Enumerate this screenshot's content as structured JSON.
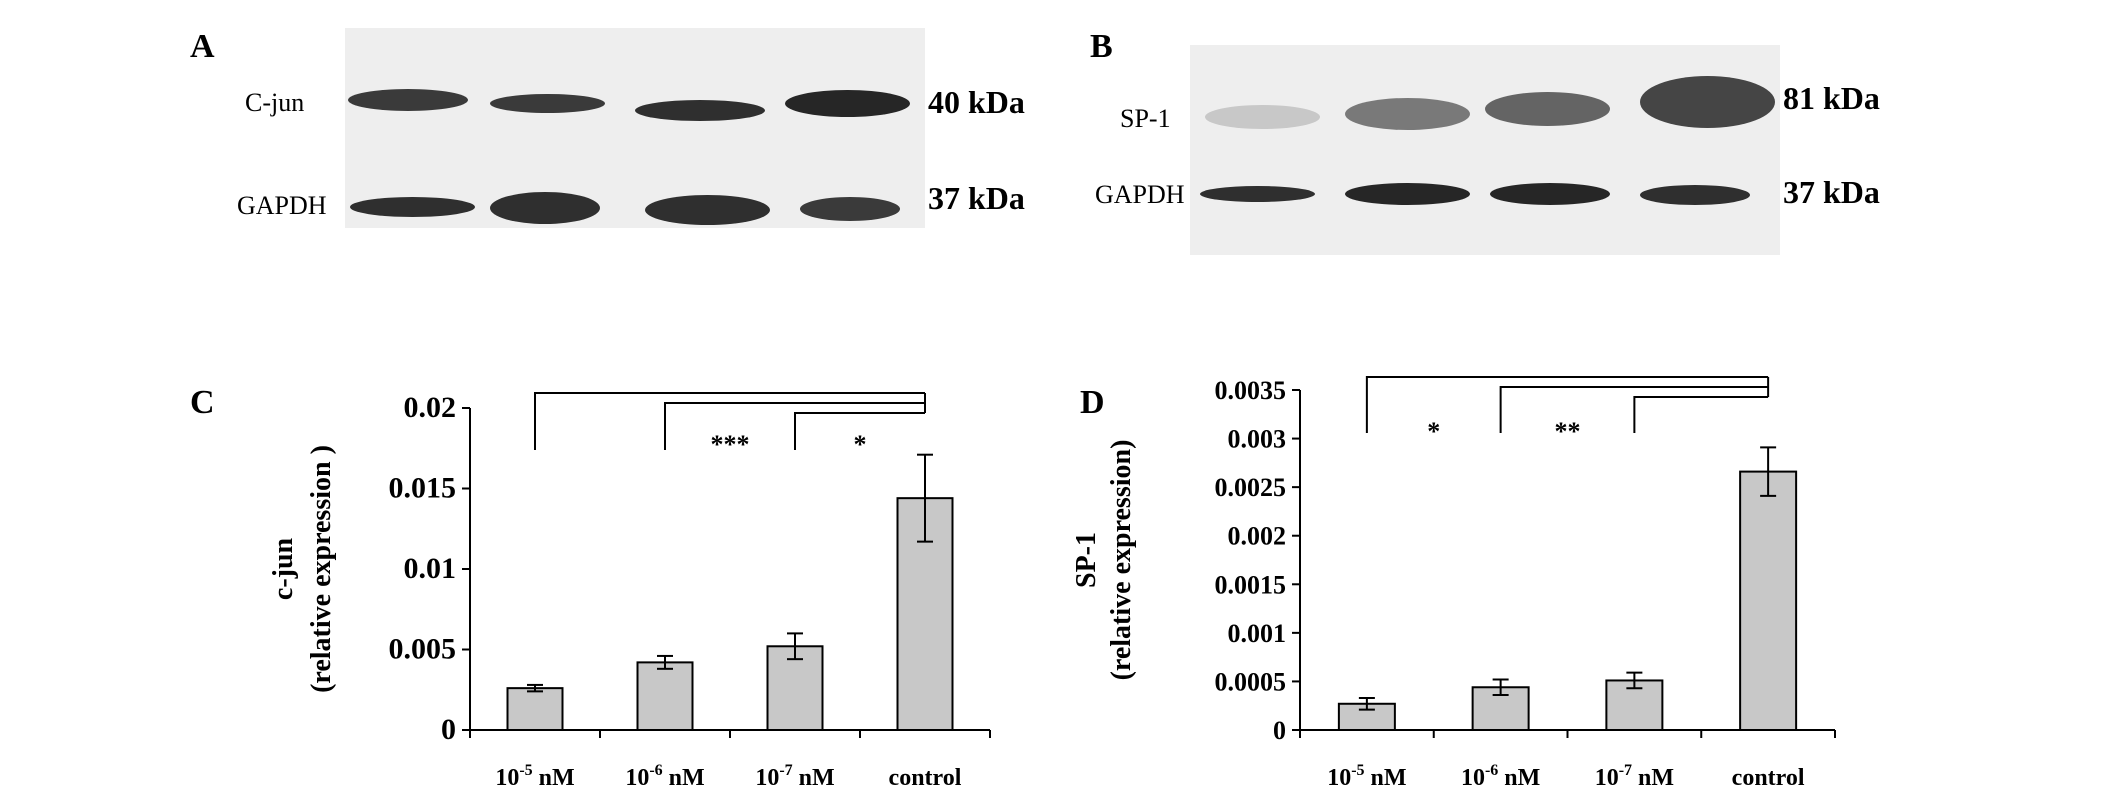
{
  "panels": {
    "a": {
      "letter": "A",
      "rows": [
        {
          "label": "C-jun",
          "kda": "40 kDa"
        },
        {
          "label": "GAPDH",
          "kda": "37 kDa"
        }
      ]
    },
    "b": {
      "letter": "B",
      "rows": [
        {
          "label": "SP-1",
          "kda": "81 kDa"
        },
        {
          "label": "GAPDH",
          "kda": "37 kDa"
        }
      ]
    }
  },
  "chart_data": [
    {
      "panel": "C",
      "type": "bar",
      "categories": [
        "10-5 nM",
        "10-6 nM",
        "10-7 nM",
        "control"
      ],
      "category_parts": [
        {
          "base": "10",
          "exp": "-5",
          "unit": "nM"
        },
        {
          "base": "10",
          "exp": "-6",
          "unit": "nM"
        },
        {
          "base": "10",
          "exp": "-7",
          "unit": "nM"
        },
        {
          "base": "control",
          "exp": "",
          "unit": ""
        }
      ],
      "values": [
        0.0026,
        0.0042,
        0.0052,
        0.0144
      ],
      "errors": [
        0.0002,
        0.0004,
        0.0008,
        0.0027
      ],
      "ylabel": "c-jun",
      "ylabel2": "(relative expression )",
      "ylim": [
        0,
        0.02
      ],
      "yticks": [
        0,
        0.005,
        0.01,
        0.015,
        0.02
      ],
      "ytick_labels": [
        "0",
        "0.005",
        "0.01",
        "0.015",
        "0.02"
      ],
      "bar_color": "#c8c8c8",
      "significance": [
        {
          "from": 0,
          "to": 3,
          "label": ""
        },
        {
          "from": 1,
          "to": 3,
          "label": "***"
        },
        {
          "from": 2,
          "to": 3,
          "label": "*"
        }
      ]
    },
    {
      "panel": "D",
      "type": "bar",
      "categories": [
        "10-5 nM",
        "10-6 nM",
        "10-7 nM",
        "control"
      ],
      "category_parts": [
        {
          "base": "10",
          "exp": "-5",
          "unit": "nM"
        },
        {
          "base": "10",
          "exp": "-6",
          "unit": "nM"
        },
        {
          "base": "10",
          "exp": "-7",
          "unit": "nM"
        },
        {
          "base": "control",
          "exp": "",
          "unit": ""
        }
      ],
      "values": [
        0.00027,
        0.00044,
        0.00051,
        0.00266
      ],
      "errors": [
        6e-05,
        8e-05,
        8e-05,
        0.00025
      ],
      "ylabel": "SP-1",
      "ylabel2": "(relative expression)",
      "ylim": [
        0,
        0.0035
      ],
      "yticks": [
        0,
        0.0005,
        0.001,
        0.0015,
        0.002,
        0.0025,
        0.003,
        0.0035
      ],
      "ytick_labels": [
        "0",
        "0.0005",
        "0.001",
        "0.0015",
        "0.002",
        "0.0025",
        "0.003",
        "0.0035"
      ],
      "bar_color": "#c8c8c8",
      "significance": [
        {
          "from": 0,
          "to": 3,
          "label": "*"
        },
        {
          "from": 1,
          "to": 3,
          "label": "**"
        },
        {
          "from": 2,
          "to": 3,
          "label": ""
        }
      ]
    }
  ]
}
